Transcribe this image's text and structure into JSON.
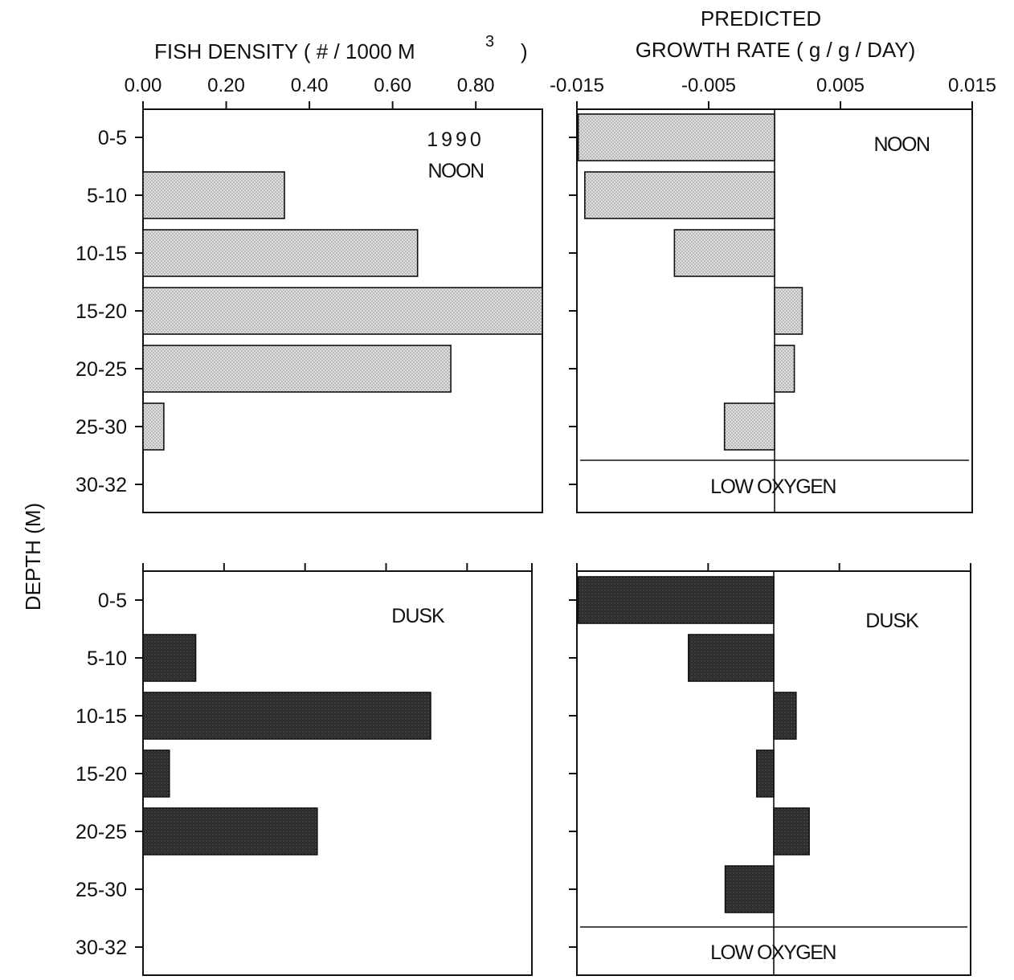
{
  "chart_data": [
    {
      "panel": "top-left",
      "type": "bar",
      "orientation": "horizontal",
      "title": "FISH DENSITY ( # / 1000  M",
      "title_superscript": "3",
      "title_close": ")",
      "xlim": [
        0.0,
        0.96
      ],
      "xticks": [
        "0.00",
        "0.20",
        "0.40",
        "0.60",
        "0.80"
      ],
      "xtick_values": [
        0.0,
        0.2,
        0.4,
        0.6,
        0.8
      ],
      "categories": [
        "0-5",
        "5-10",
        "10-15",
        "15-20",
        "20-25",
        "25-30",
        "30-32"
      ],
      "values": [
        0.0,
        0.34,
        0.66,
        0.96,
        0.74,
        0.05,
        0.0
      ],
      "annotations": [
        "1990",
        "NOON"
      ],
      "fill_color": "#d2d2d2"
    },
    {
      "panel": "top-right",
      "type": "bar",
      "orientation": "horizontal",
      "title_line1": "PREDICTED",
      "title_line2": "GROWTH RATE ( g / g / DAY)",
      "xlim": [
        -0.015,
        0.015
      ],
      "xticks": [
        "-0.015",
        "-0.005",
        "0.005",
        "0.015"
      ],
      "xtick_values": [
        -0.015,
        -0.005,
        0.005,
        0.015
      ],
      "categories": [
        "0-5",
        "5-10",
        "10-15",
        "15-20",
        "20-25",
        "25-30",
        "30-32"
      ],
      "values": [
        -0.0149,
        -0.0144,
        -0.0076,
        0.0021,
        0.0015,
        -0.0038,
        null
      ],
      "annotations": [
        "NOON",
        "LOW OXYGEN"
      ],
      "fill_color": "#d2d2d2"
    },
    {
      "panel": "bottom-left",
      "type": "bar",
      "orientation": "horizontal",
      "xlim": [
        0.0,
        0.96
      ],
      "xtick_values": [
        0.0,
        0.2,
        0.4,
        0.6,
        0.8,
        0.96
      ],
      "categories": [
        "0-5",
        "5-10",
        "10-15",
        "15-20",
        "20-25",
        "25-30",
        "30-32"
      ],
      "values": [
        0.0,
        0.13,
        0.71,
        0.065,
        0.43,
        0.0,
        0.0
      ],
      "annotations": [
        "DUSK"
      ],
      "fill_color": "#2b2b2b"
    },
    {
      "panel": "bottom-right",
      "type": "bar",
      "orientation": "horizontal",
      "xlim": [
        -0.015,
        0.015
      ],
      "xtick_values": [
        -0.015,
        -0.005,
        0.005,
        0.015
      ],
      "categories": [
        "0-5",
        "5-10",
        "10-15",
        "15-20",
        "20-25",
        "25-30",
        "30-32"
      ],
      "values": [
        -0.0149,
        -0.0065,
        0.0017,
        -0.0013,
        0.0027,
        -0.0037,
        null
      ],
      "annotations": [
        "DUSK",
        "LOW OXYGEN"
      ],
      "fill_color": "#2b2b2b"
    }
  ],
  "ylabel": "DEPTH (M)"
}
